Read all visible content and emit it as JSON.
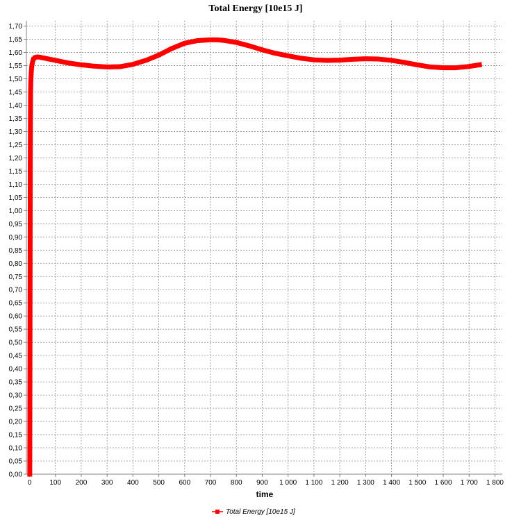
{
  "chart_data": {
    "type": "line",
    "title": "Total Energy [10e15 J]",
    "xlabel": "time",
    "ylabel": "",
    "xlim": [
      0,
      1800
    ],
    "ylim": [
      0,
      1.72
    ],
    "x_ticks": [
      {
        "v": 0,
        "label": "0"
      },
      {
        "v": 100,
        "label": "100"
      },
      {
        "v": 200,
        "label": "200"
      },
      {
        "v": 300,
        "label": "300"
      },
      {
        "v": 400,
        "label": "400"
      },
      {
        "v": 500,
        "label": "500"
      },
      {
        "v": 600,
        "label": "600"
      },
      {
        "v": 700,
        "label": "700"
      },
      {
        "v": 800,
        "label": "800"
      },
      {
        "v": 900,
        "label": "900"
      },
      {
        "v": 1000,
        "label": "1 000"
      },
      {
        "v": 1100,
        "label": "1 100"
      },
      {
        "v": 1200,
        "label": "1 200"
      },
      {
        "v": 1300,
        "label": "1 300"
      },
      {
        "v": 1400,
        "label": "1 400"
      },
      {
        "v": 1500,
        "label": "1 500"
      },
      {
        "v": 1600,
        "label": "1 600"
      },
      {
        "v": 1700,
        "label": "1 700"
      },
      {
        "v": 1800,
        "label": "1 800"
      }
    ],
    "y_ticks": [
      {
        "v": 0.0,
        "label": "0,00"
      },
      {
        "v": 0.05,
        "label": "0,05"
      },
      {
        "v": 0.1,
        "label": "0,10"
      },
      {
        "v": 0.15,
        "label": "0,15"
      },
      {
        "v": 0.2,
        "label": "0,20"
      },
      {
        "v": 0.25,
        "label": "0,25"
      },
      {
        "v": 0.3,
        "label": "0,30"
      },
      {
        "v": 0.35,
        "label": "0,35"
      },
      {
        "v": 0.4,
        "label": "0,40"
      },
      {
        "v": 0.45,
        "label": "0,45"
      },
      {
        "v": 0.5,
        "label": "0,50"
      },
      {
        "v": 0.55,
        "label": "0,55"
      },
      {
        "v": 0.6,
        "label": "0,60"
      },
      {
        "v": 0.65,
        "label": "0,65"
      },
      {
        "v": 0.7,
        "label": "0,70"
      },
      {
        "v": 0.75,
        "label": "0,75"
      },
      {
        "v": 0.8,
        "label": "0,80"
      },
      {
        "v": 0.85,
        "label": "0,85"
      },
      {
        "v": 0.9,
        "label": "0,90"
      },
      {
        "v": 0.95,
        "label": "0,95"
      },
      {
        "v": 1.0,
        "label": "1,00"
      },
      {
        "v": 1.05,
        "label": "1,05"
      },
      {
        "v": 1.1,
        "label": "1,10"
      },
      {
        "v": 1.15,
        "label": "1,15"
      },
      {
        "v": 1.2,
        "label": "1,20"
      },
      {
        "v": 1.25,
        "label": "1,25"
      },
      {
        "v": 1.3,
        "label": "1,30"
      },
      {
        "v": 1.35,
        "label": "1,35"
      },
      {
        "v": 1.4,
        "label": "1,40"
      },
      {
        "v": 1.45,
        "label": "1,45"
      },
      {
        "v": 1.5,
        "label": "1,50"
      },
      {
        "v": 1.55,
        "label": "1,55"
      },
      {
        "v": 1.6,
        "label": "1,60"
      },
      {
        "v": 1.65,
        "label": "1,65"
      },
      {
        "v": 1.7,
        "label": "1,70"
      }
    ],
    "grid": true,
    "legend_position": "bottom-center",
    "series": [
      {
        "name": "Total Energy [10e15 J]",
        "color": "#ff0000",
        "marker": "square",
        "x": [
          1,
          2,
          3,
          4,
          5,
          7,
          9,
          12,
          15,
          20,
          25,
          30,
          40,
          50,
          75,
          100,
          150,
          200,
          250,
          300,
          350,
          400,
          450,
          500,
          550,
          600,
          650,
          700,
          725,
          750,
          800,
          850,
          900,
          950,
          1000,
          1050,
          1100,
          1150,
          1200,
          1250,
          1300,
          1350,
          1400,
          1450,
          1500,
          1550,
          1600,
          1650,
          1700,
          1740
        ],
        "y": [
          0.0,
          0.6,
          1.2,
          1.44,
          1.49,
          1.53,
          1.55,
          1.565,
          1.575,
          1.58,
          1.582,
          1.583,
          1.582,
          1.58,
          1.575,
          1.57,
          1.56,
          1.553,
          1.548,
          1.545,
          1.546,
          1.555,
          1.57,
          1.59,
          1.615,
          1.635,
          1.645,
          1.648,
          1.648,
          1.646,
          1.638,
          1.625,
          1.61,
          1.597,
          1.587,
          1.578,
          1.572,
          1.57,
          1.571,
          1.574,
          1.576,
          1.575,
          1.57,
          1.562,
          1.553,
          1.545,
          1.542,
          1.542,
          1.547,
          1.553
        ]
      }
    ]
  }
}
